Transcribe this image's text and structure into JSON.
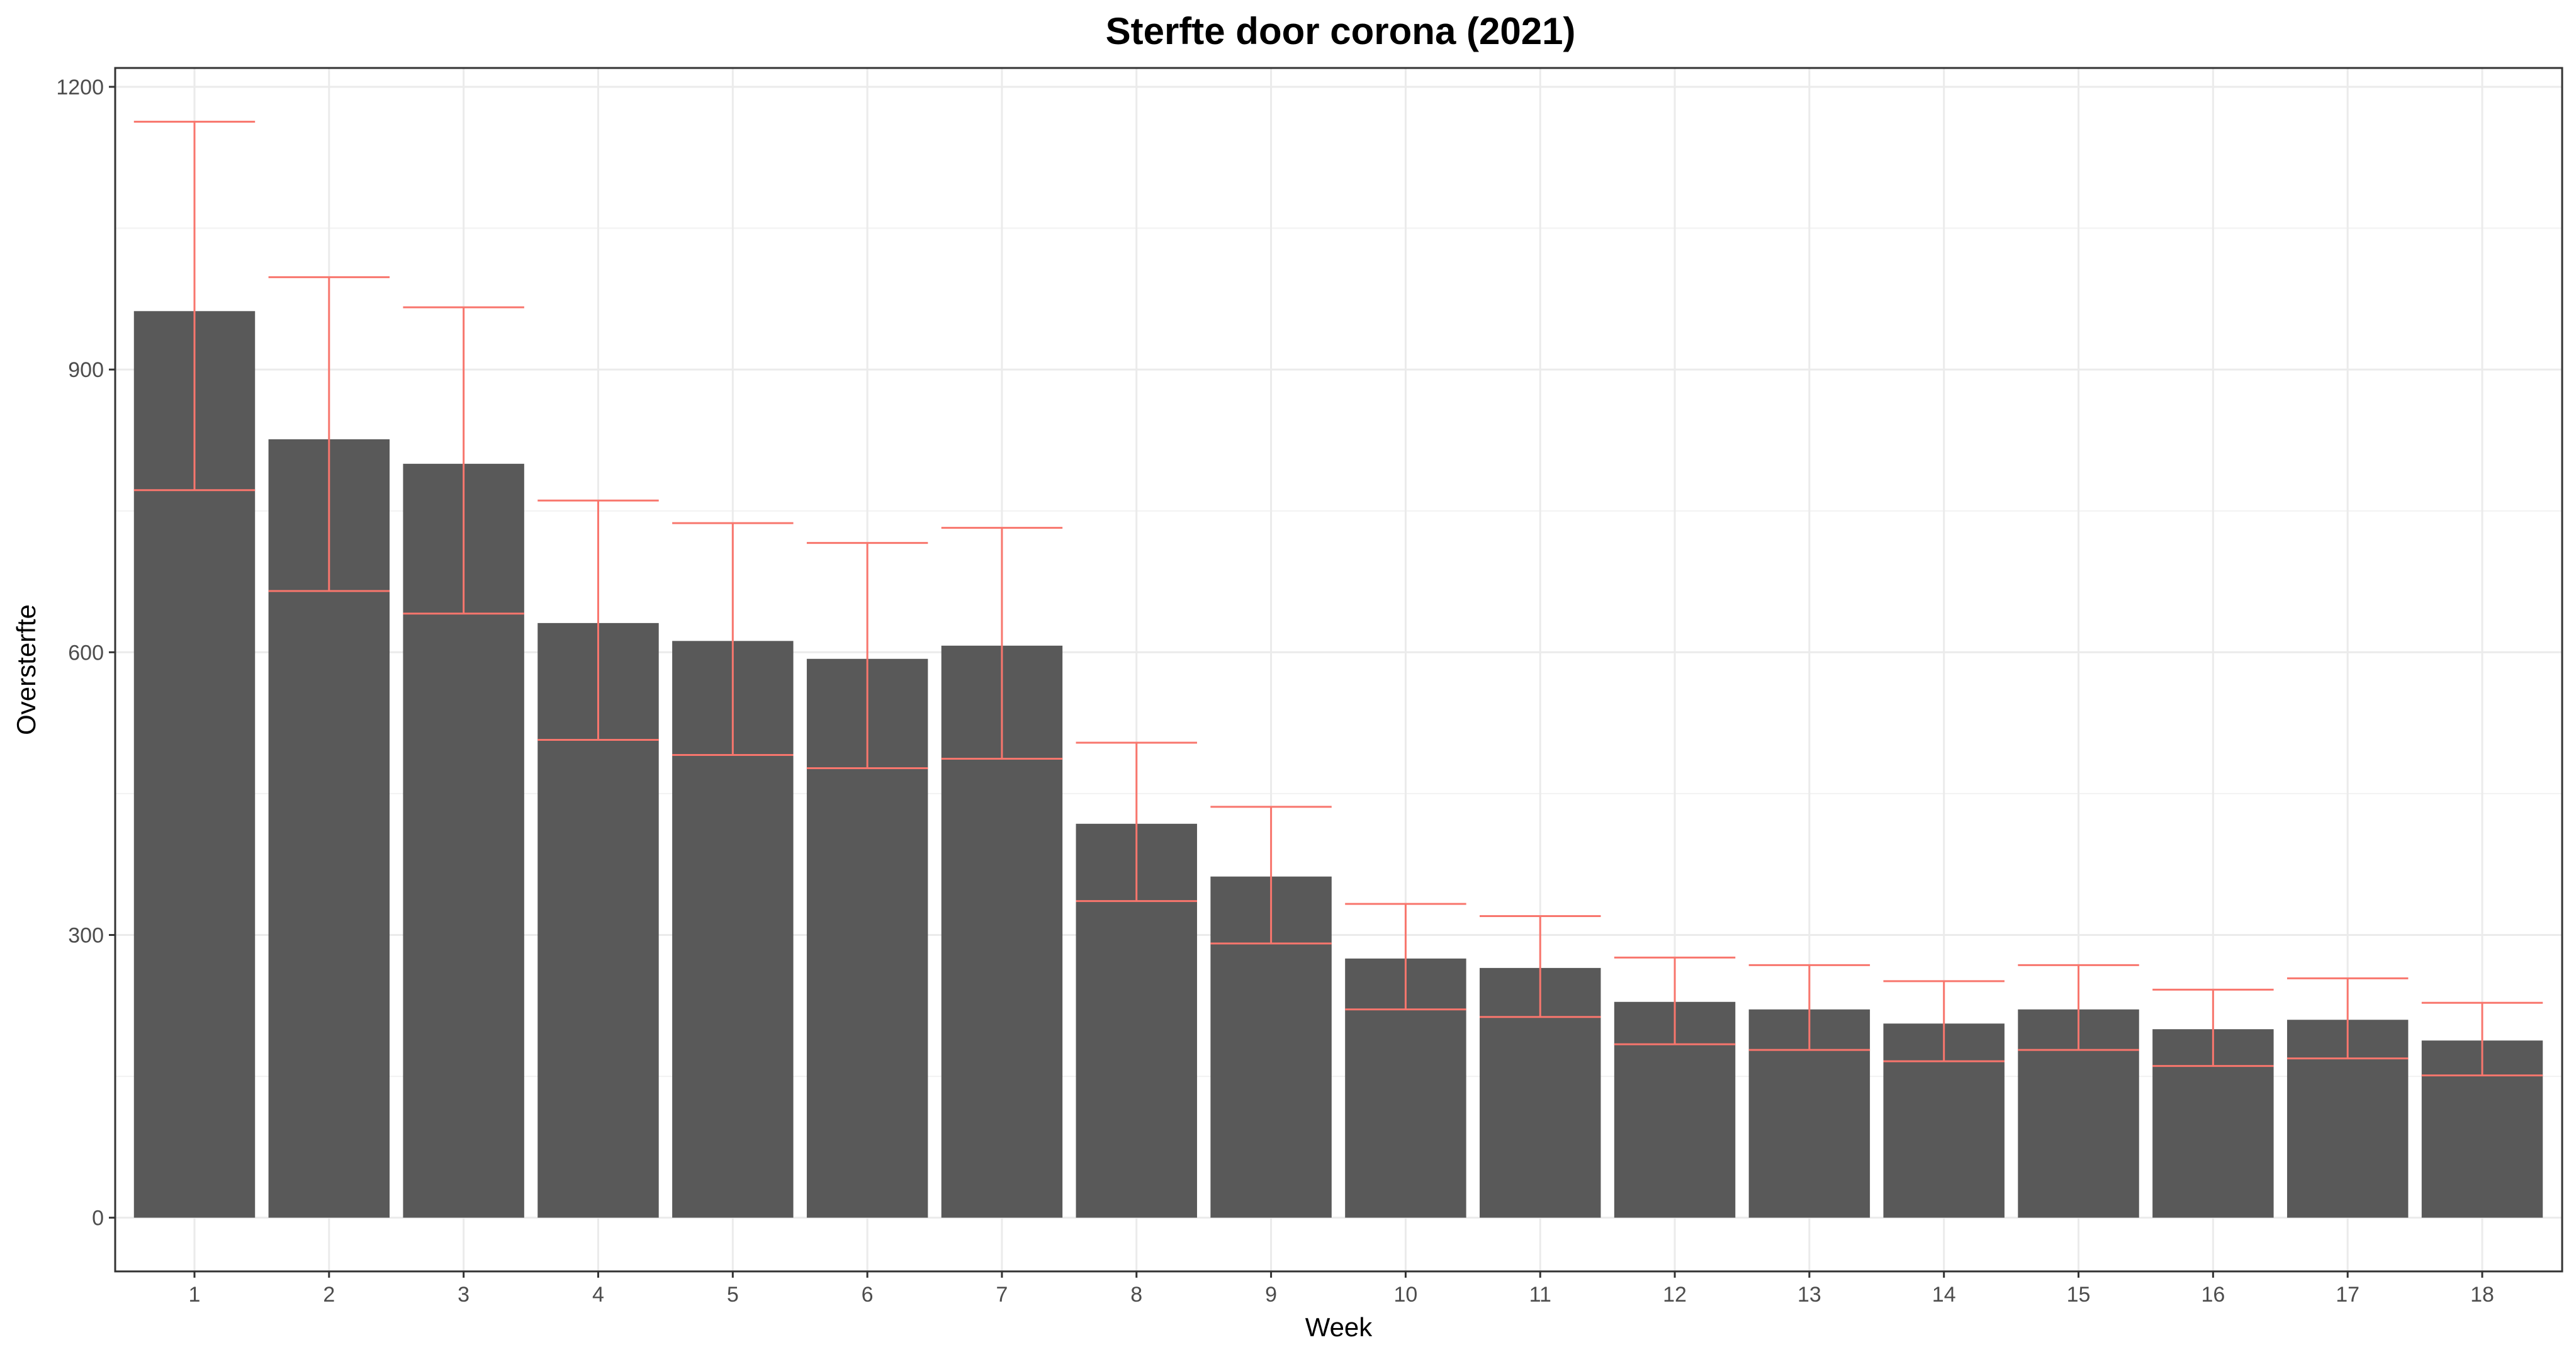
{
  "chart_data": {
    "type": "bar",
    "title": "Sterfte door corona (2021)",
    "xlabel": "Week",
    "ylabel": "Oversterfte",
    "categories": [
      "1",
      "2",
      "3",
      "4",
      "5",
      "6",
      "7",
      "8",
      "9",
      "10",
      "11",
      "12",
      "13",
      "14",
      "15",
      "16",
      "17",
      "18"
    ],
    "values": [
      962,
      826,
      800,
      631,
      612,
      593,
      607,
      418,
      362,
      275,
      265,
      229,
      221,
      206,
      221,
      200,
      210,
      188
    ],
    "error_low": [
      772,
      665,
      641,
      507,
      491,
      477,
      487,
      336,
      291,
      221,
      213,
      184,
      178,
      166,
      178,
      161,
      169,
      151
    ],
    "error_high": [
      1163,
      998,
      966,
      761,
      737,
      716,
      732,
      504,
      436,
      333,
      320,
      276,
      268,
      251,
      268,
      242,
      254,
      228
    ],
    "ylim": [
      -57,
      1220
    ],
    "yticks": [
      0,
      300,
      600,
      900,
      1200
    ],
    "grid": true,
    "bar_color": "#595959",
    "errorbar_color": "#F8766D"
  }
}
